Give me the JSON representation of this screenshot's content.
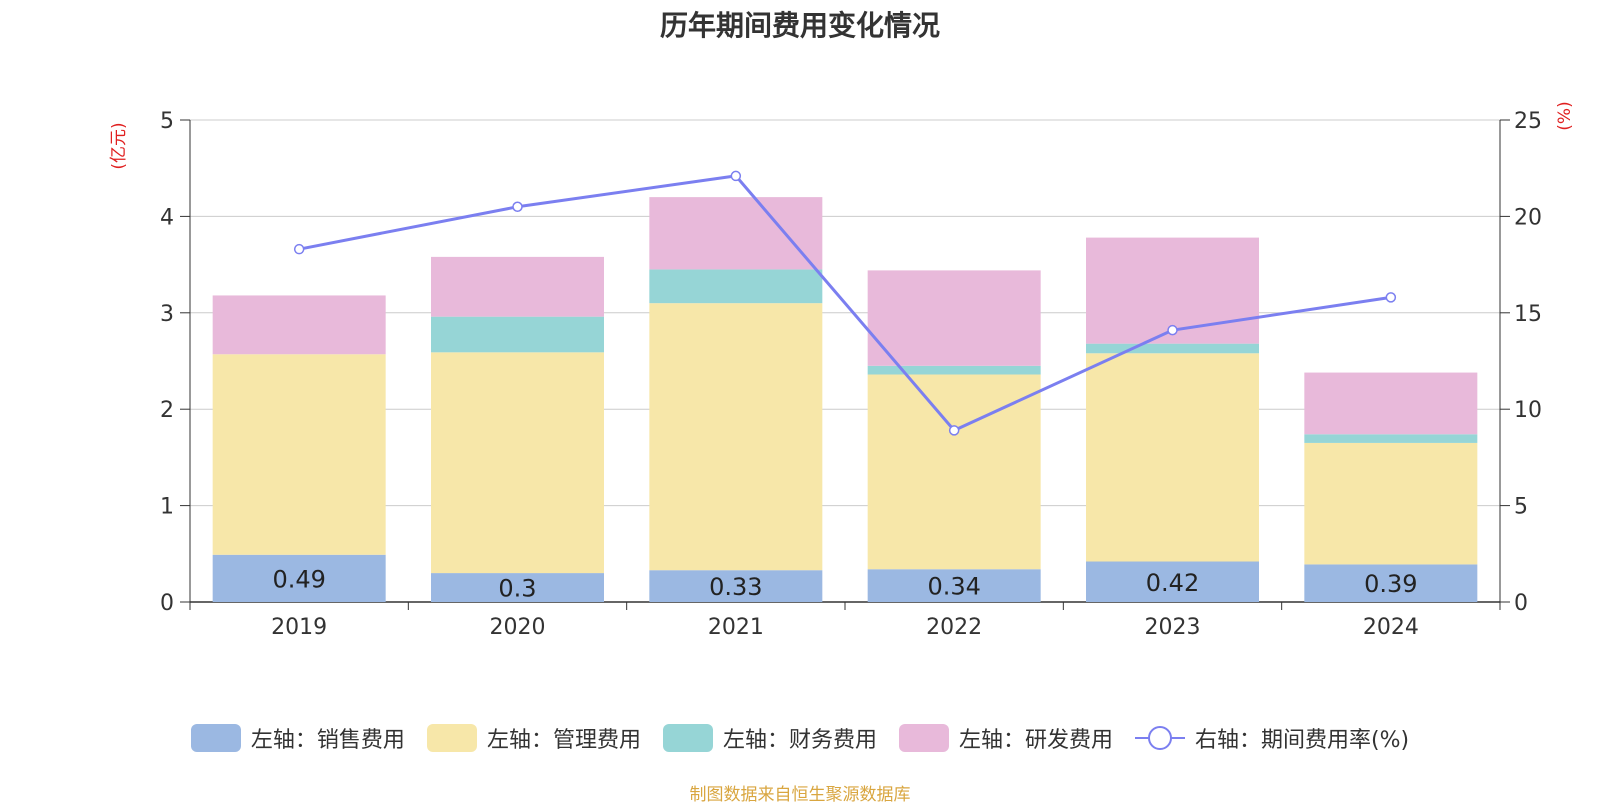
{
  "title": "历年期间费用变化情况",
  "source": "制图数据来自恒生聚源数据库",
  "chart_data": {
    "type": "bar",
    "stacked": true,
    "categories": [
      "2019",
      "2020",
      "2021",
      "2022",
      "2023",
      "2024"
    ],
    "left_axis": {
      "unit_label": "(亿元)",
      "ylim": [
        0,
        5
      ],
      "ticks": [
        "0",
        "1",
        "2",
        "3",
        "4",
        "5"
      ]
    },
    "right_axis": {
      "unit_label": "(%)",
      "ylim": [
        0,
        25
      ],
      "ticks": [
        "0",
        "5",
        "10",
        "15",
        "20",
        "25"
      ]
    },
    "series": [
      {
        "name": "左轴：销售费用",
        "axis": "left",
        "kind": "bar",
        "color": "#9bb8e2",
        "values": [
          0.49,
          0.3,
          0.33,
          0.34,
          0.42,
          0.39
        ],
        "labels": [
          "0.49",
          "0.3",
          "0.33",
          "0.34",
          "0.42",
          "0.39"
        ]
      },
      {
        "name": "左轴：管理费用",
        "axis": "left",
        "kind": "bar",
        "color": "#f7e7a9",
        "values": [
          2.08,
          2.29,
          2.77,
          2.02,
          2.16,
          1.26
        ]
      },
      {
        "name": "左轴：财务费用",
        "axis": "left",
        "kind": "bar",
        "color": "#96d5d6",
        "values": [
          0.0,
          0.37,
          0.35,
          0.09,
          0.1,
          0.09
        ]
      },
      {
        "name": "左轴：研发费用",
        "axis": "left",
        "kind": "bar",
        "color": "#e8b9da",
        "values": [
          0.61,
          0.62,
          0.75,
          0.99,
          1.1,
          0.64
        ]
      },
      {
        "name": "右轴：期间费用率(%)",
        "axis": "right",
        "kind": "line",
        "color": "#7b7ff0",
        "values": [
          18.3,
          20.5,
          22.1,
          8.9,
          14.1,
          15.8
        ]
      }
    ],
    "grid": true,
    "legend_position": "bottom"
  }
}
